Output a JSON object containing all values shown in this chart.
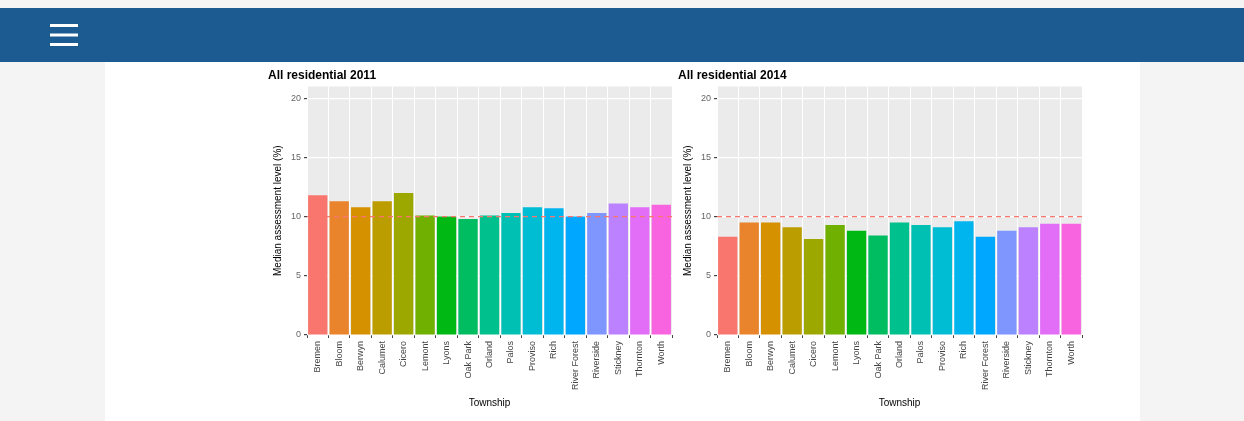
{
  "chart_data": [
    {
      "type": "bar",
      "title": "All residential 2011",
      "xlabel": "Township",
      "ylabel": "Median assessment level (%)",
      "categories": [
        "Bremen",
        "Bloom",
        "Berwyn",
        "Calumet",
        "Cicero",
        "Lemont",
        "Lyons",
        "Oak Park",
        "Orland",
        "Palos",
        "Proviso",
        "Rich",
        "River Forest",
        "Riverside",
        "Stickney",
        "Thornton",
        "Worth"
      ],
      "values": [
        11.8,
        11.3,
        10.8,
        11.3,
        12.0,
        10.1,
        10.0,
        9.8,
        10.1,
        10.3,
        10.8,
        10.7,
        10.0,
        10.3,
        11.1,
        10.8,
        11.0
      ],
      "colors": [
        "#f8766d",
        "#e9842c",
        "#d69100",
        "#bc9d00",
        "#9ca700",
        "#6fb000",
        "#00b813",
        "#00bd61",
        "#00c08e",
        "#00c0b4",
        "#00bdd4",
        "#00b5ee",
        "#00a7ff",
        "#7f96ff",
        "#bc81ff",
        "#e26ef7",
        "#f863df"
      ],
      "ylim": [
        0,
        21
      ],
      "yticks": [
        0,
        5,
        10,
        15,
        20
      ],
      "grid": true,
      "ref_lines": [
        {
          "axis": "y",
          "value": 10,
          "color": "#f8766d",
          "line_style": "dashed"
        }
      ]
    },
    {
      "type": "bar",
      "title": "All residential 2014",
      "xlabel": "Township",
      "ylabel": "Median assessment level (%)",
      "categories": [
        "Bremen",
        "Bloom",
        "Berwyn",
        "Calumet",
        "Cicero",
        "Lemont",
        "Lyons",
        "Oak Park",
        "Orland",
        "Palos",
        "Proviso",
        "Rich",
        "River Forest",
        "Riverside",
        "Stickney",
        "Thornton",
        "Worth"
      ],
      "values": [
        8.3,
        9.5,
        9.5,
        9.1,
        8.1,
        9.3,
        8.8,
        8.4,
        9.5,
        9.3,
        9.1,
        9.6,
        8.3,
        8.8,
        9.1,
        9.4,
        9.4
      ],
      "colors": [
        "#f8766d",
        "#e9842c",
        "#d69100",
        "#bc9d00",
        "#9ca700",
        "#6fb000",
        "#00b813",
        "#00bd61",
        "#00c08e",
        "#00c0b4",
        "#00bdd4",
        "#00b5ee",
        "#00a7ff",
        "#7f96ff",
        "#bc81ff",
        "#e26ef7",
        "#f863df"
      ],
      "ylim": [
        0,
        21
      ],
      "yticks": [
        0,
        5,
        10,
        15,
        20
      ],
      "grid": true,
      "ref_lines": [
        {
          "axis": "y",
          "value": 10,
          "color": "#f8766d",
          "line_style": "dashed"
        }
      ]
    }
  ]
}
